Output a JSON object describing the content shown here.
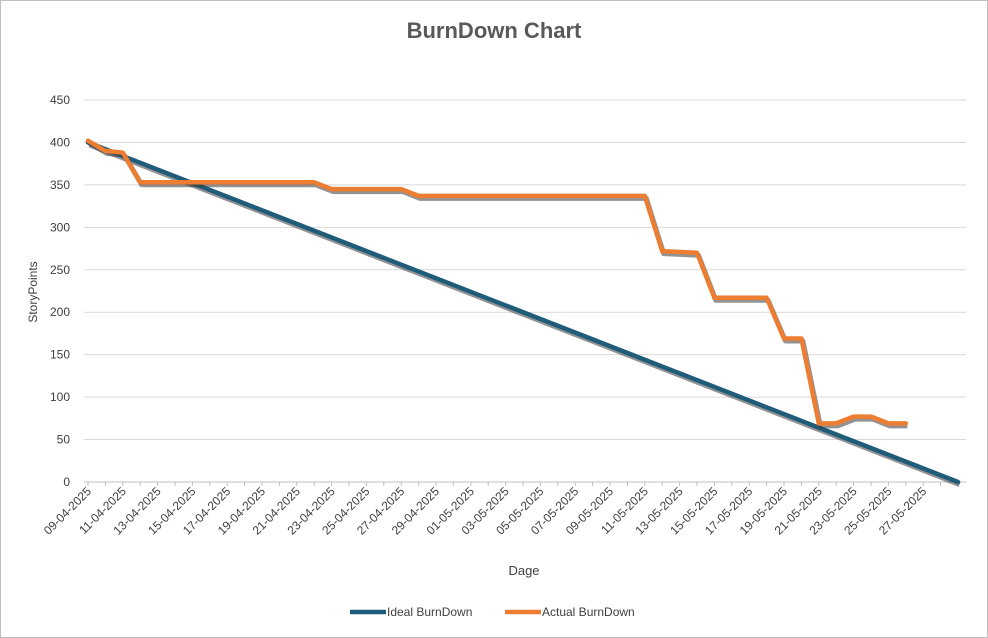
{
  "chart_data": {
    "type": "line",
    "title": "BurnDown Chart",
    "xlabel": "Dage",
    "ylabel": "StoryPoints",
    "ylim": [
      0,
      450
    ],
    "y_ticks": [
      0,
      50,
      100,
      150,
      200,
      250,
      300,
      350,
      400,
      450
    ],
    "x_tick_labels": [
      "09-04-2025",
      "11-04-2025",
      "13-04-2025",
      "15-04-2025",
      "17-04-2025",
      "19-04-2025",
      "21-04-2025",
      "23-04-2025",
      "25-04-2025",
      "27-04-2025",
      "29-04-2025",
      "01-05-2025",
      "03-05-2025",
      "05-05-2025",
      "07-05-2025",
      "09-05-2025",
      "11-05-2025",
      "13-05-2025",
      "15-05-2025",
      "17-05-2025",
      "19-05-2025",
      "21-05-2025",
      "23-05-2025",
      "25-05-2025",
      "27-05-2025"
    ],
    "x_range": [
      "2025-04-09",
      "2025-05-29"
    ],
    "grid": "horizontal",
    "legend_position": "bottom",
    "series": [
      {
        "name": "Ideal BurnDown",
        "color": "#1F5C7A",
        "points": [
          [
            "2025-04-09",
            400
          ],
          [
            "2025-05-29",
            0
          ]
        ]
      },
      {
        "name": "Actual BurnDown",
        "color": "#ED7D31",
        "points": [
          [
            "2025-04-09",
            402
          ],
          [
            "2025-04-10",
            390
          ],
          [
            "2025-04-11",
            388
          ],
          [
            "2025-04-12",
            353
          ],
          [
            "2025-04-22",
            353
          ],
          [
            "2025-04-23",
            345
          ],
          [
            "2025-04-27",
            345
          ],
          [
            "2025-04-28",
            337
          ],
          [
            "2025-05-11",
            337
          ],
          [
            "2025-05-12",
            272
          ],
          [
            "2025-05-14",
            270
          ],
          [
            "2025-05-15",
            217
          ],
          [
            "2025-05-18",
            217
          ],
          [
            "2025-05-19",
            169
          ],
          [
            "2025-05-20",
            169
          ],
          [
            "2025-05-21",
            69
          ],
          [
            "2025-05-22",
            69
          ],
          [
            "2025-05-23",
            77
          ],
          [
            "2025-05-24",
            77
          ],
          [
            "2025-05-25",
            69
          ],
          [
            "2025-05-26",
            69
          ]
        ]
      }
    ]
  }
}
